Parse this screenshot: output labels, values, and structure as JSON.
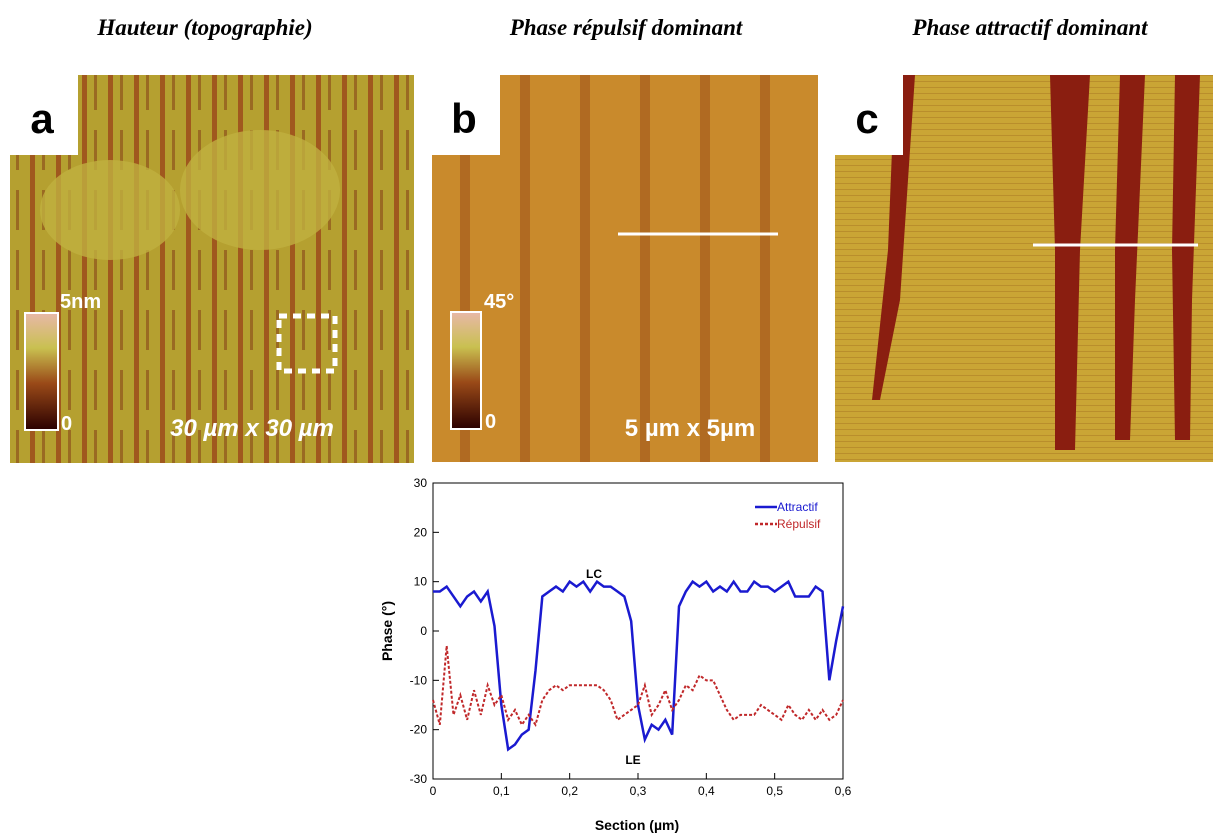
{
  "panels": [
    {
      "title": "Hauteur (topographie)",
      "letter": "a",
      "scale_max": "5nm",
      "scale_min": "0",
      "size": "30 µm x 30 µm"
    },
    {
      "title": "Phase répulsif dominant",
      "letter": "b",
      "scale_max": "45°",
      "scale_min": "0",
      "size": "5 µm x 5µm"
    },
    {
      "title": "Phase attractif dominant",
      "letter": "c"
    }
  ],
  "chart_data": {
    "type": "line",
    "x_label": "Section (µm)",
    "y_label": "Phase (°)",
    "annotations": [
      "LC",
      "LE"
    ],
    "x": [
      0,
      0.01,
      0.02,
      0.03,
      0.04,
      0.05,
      0.06,
      0.07,
      0.08,
      0.09,
      0.1,
      0.11,
      0.12,
      0.13,
      0.14,
      0.15,
      0.16,
      0.17,
      0.18,
      0.19,
      0.2,
      0.21,
      0.22,
      0.23,
      0.24,
      0.25,
      0.26,
      0.27,
      0.28,
      0.29,
      0.3,
      0.31,
      0.32,
      0.33,
      0.34,
      0.35,
      0.36,
      0.37,
      0.38,
      0.39,
      0.4,
      0.41,
      0.42,
      0.43,
      0.44,
      0.45,
      0.46,
      0.47,
      0.48,
      0.49,
      0.5,
      0.51,
      0.52,
      0.53,
      0.54,
      0.55,
      0.56,
      0.57,
      0.58,
      0.59,
      0.6
    ],
    "series": [
      {
        "name": "Attractif",
        "color": "#1a1ad0",
        "line_style": "solid",
        "values": [
          8,
          8,
          9,
          7,
          5,
          7,
          8,
          6,
          8,
          1,
          -15,
          -24,
          -23,
          -21,
          -20,
          -8,
          7,
          8,
          9,
          8,
          10,
          9,
          10,
          8,
          10,
          9,
          9,
          8,
          7,
          2,
          -15,
          -22,
          -19,
          -20,
          -18,
          -21,
          5,
          8,
          10,
          9,
          10,
          8,
          9,
          8,
          10,
          8,
          8,
          10,
          9,
          9,
          8,
          9,
          10,
          7,
          7,
          7,
          9,
          8,
          -10,
          -2,
          5
        ]
      },
      {
        "name": "Répulsif",
        "color": "#c0282a",
        "line_style": "dashed",
        "values": [
          -14,
          -19,
          -3,
          -17,
          -13,
          -18,
          -12,
          -17,
          -11,
          -15,
          -13,
          -18,
          -16,
          -19,
          -17,
          -19,
          -14,
          -12,
          -11,
          -12,
          -11,
          -11,
          -11,
          -11,
          -11,
          -12,
          -14,
          -18,
          -17,
          -16,
          -15,
          -11,
          -17,
          -15,
          -12,
          -16,
          -14,
          -11,
          -12,
          -9,
          -10,
          -10,
          -13,
          -16,
          -18,
          -17,
          -17,
          -17,
          -15,
          -16,
          -17,
          -18,
          -15,
          -17,
          -18,
          -16,
          -18,
          -16,
          -18,
          -17,
          -14
        ]
      }
    ],
    "xlim": [
      0,
      0.6
    ],
    "xticks": [
      0,
      {
        "value": 0.1,
        "label": "0,1"
      },
      {
        "value": 0.2,
        "label": "0,2"
      },
      {
        "value": 0.3,
        "label": "0,3"
      },
      {
        "value": 0.4,
        "label": "0,4"
      },
      {
        "value": 0.5,
        "label": "0,5"
      },
      {
        "value": 0.6,
        "label": "0,6"
      }
    ],
    "ylim": [
      -30,
      30
    ],
    "yticks": [
      -30,
      -20,
      -10,
      0,
      10,
      20,
      30
    ],
    "legend": "top-right"
  }
}
